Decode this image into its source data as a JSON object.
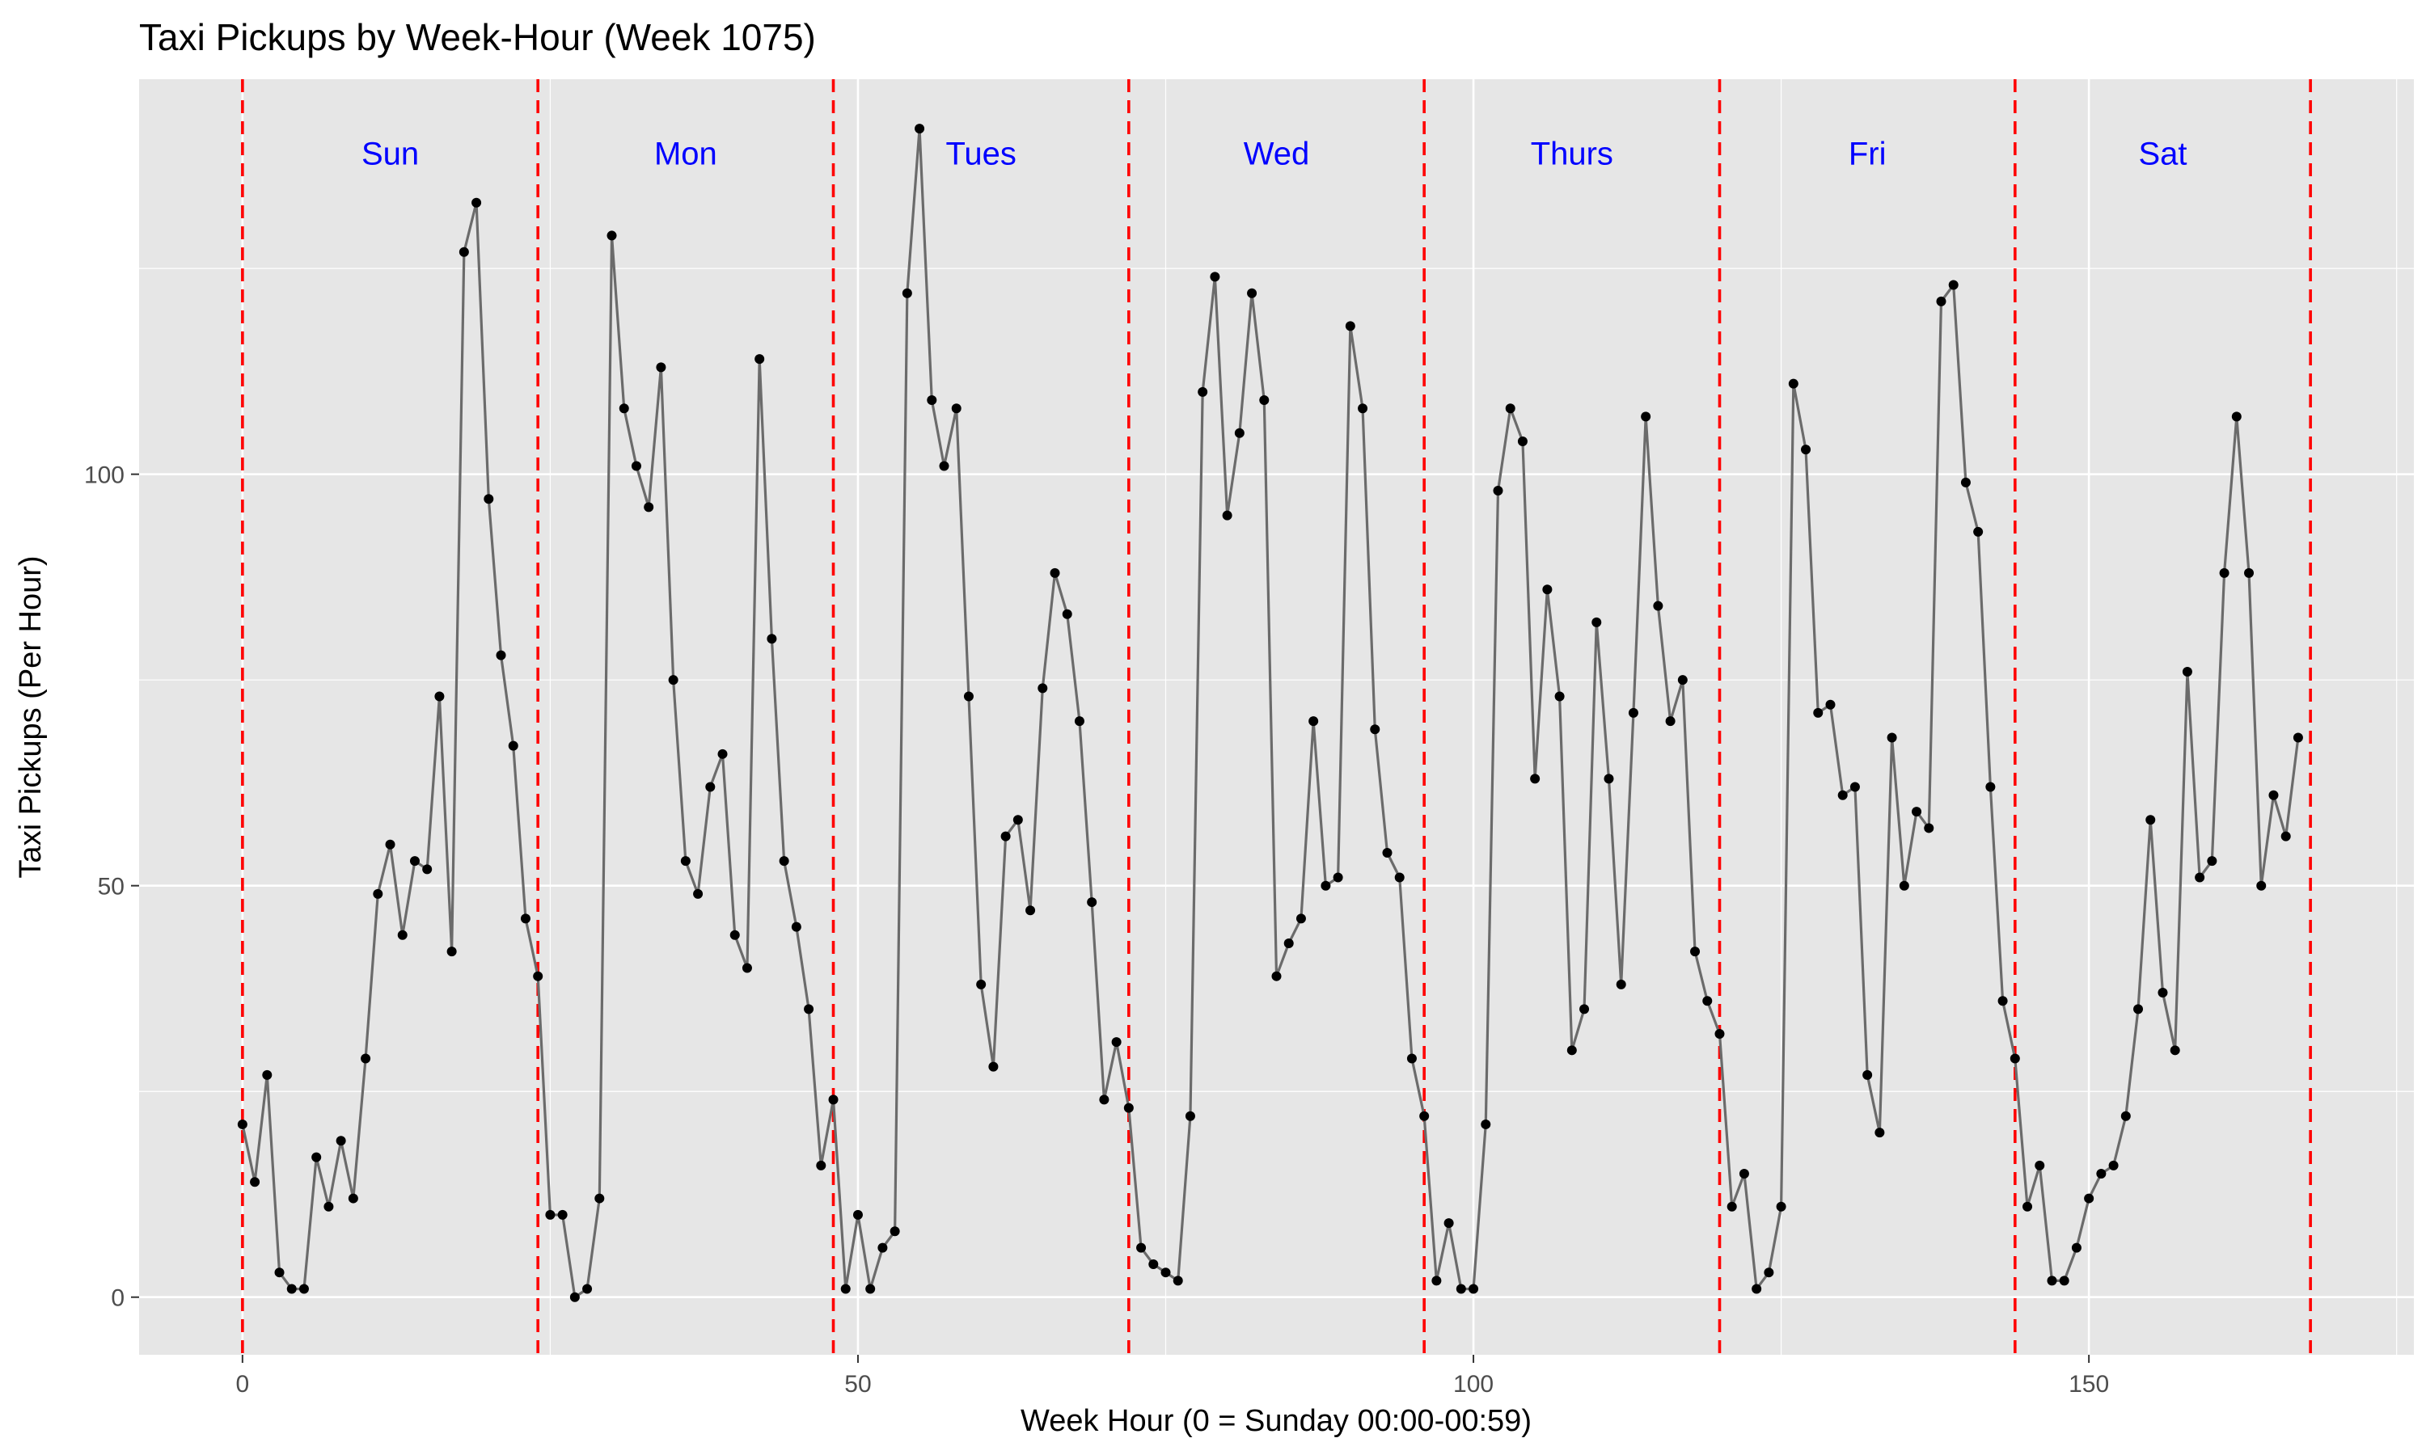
{
  "chart_data": {
    "type": "line",
    "title": "Taxi Pickups by Week-Hour (Week 1075)",
    "xlabel": "Week Hour (0 = Sunday 00:00-00:59)",
    "ylabel": "Taxi Pickups (Per Hour)",
    "xlim": [
      -8.4,
      176.4
    ],
    "ylim": [
      -7,
      148
    ],
    "xticks": [
      0,
      50,
      100,
      150
    ],
    "yticks": [
      0,
      50,
      100
    ],
    "grid": true,
    "legend": "none",
    "line_color": "#6b6b6b",
    "point_color": "#000000",
    "vline_color": "#ff0000",
    "label_color": "#0000ff",
    "panel_color": "#e6e6e6",
    "day_boundaries": [
      0,
      24,
      48,
      72,
      96,
      120,
      144,
      168
    ],
    "day_labels": [
      {
        "label": "Sun",
        "x": 12,
        "y": 139
      },
      {
        "label": "Mon",
        "x": 36,
        "y": 139
      },
      {
        "label": "Tues",
        "x": 60,
        "y": 139
      },
      {
        "label": "Wed",
        "x": 84,
        "y": 139
      },
      {
        "label": "Thurs",
        "x": 108,
        "y": 139
      },
      {
        "label": "Fri",
        "x": 132,
        "y": 139
      },
      {
        "label": "Sat",
        "x": 156,
        "y": 139
      }
    ],
    "values": [
      21,
      14,
      27,
      3,
      1,
      1,
      17,
      11,
      19,
      12,
      29,
      49,
      55,
      44,
      53,
      52,
      73,
      42,
      127,
      133,
      97,
      78,
      67,
      46,
      39,
      10,
      10,
      0,
      1,
      12,
      129,
      108,
      101,
      96,
      113,
      75,
      53,
      49,
      62,
      66,
      44,
      40,
      114,
      80,
      53,
      45,
      35,
      16,
      24,
      1,
      10,
      1,
      6,
      8,
      122,
      142,
      109,
      101,
      108,
      73,
      38,
      28,
      56,
      58,
      47,
      74,
      88,
      83,
      70,
      48,
      24,
      31,
      23,
      6,
      4,
      3,
      2,
      22,
      110,
      124,
      95,
      105,
      122,
      109,
      39,
      43,
      46,
      70,
      50,
      51,
      118,
      108,
      69,
      54,
      51,
      29,
      22,
      2,
      9,
      1,
      1,
      21,
      98,
      108,
      104,
      63,
      86,
      73,
      30,
      35,
      82,
      63,
      38,
      71,
      107,
      84,
      70,
      75,
      42,
      36,
      32,
      11,
      15,
      1,
      3,
      11,
      111,
      103,
      71,
      72,
      61,
      62,
      27,
      20,
      68,
      50,
      59,
      57,
      121,
      123,
      99,
      93,
      62,
      36,
      29,
      11,
      16,
      2,
      2,
      6,
      12,
      15,
      16,
      22,
      35,
      58,
      37,
      30,
      76,
      51,
      53,
      88,
      107,
      88,
      50,
      61,
      56,
      68
    ]
  }
}
